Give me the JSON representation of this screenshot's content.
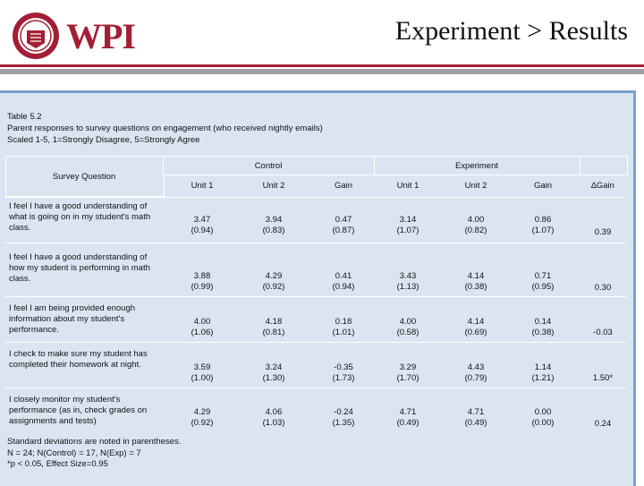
{
  "header": {
    "logo_text": "WPI",
    "title": "Experiment > Results"
  },
  "caption": {
    "line1": "Table 5.2",
    "line2": "Parent responses to survey questions on engagement (who received nightly emails)",
    "line3": "Scaled 1-5, 1=Strongly Disagree, 5=Strongly Agree"
  },
  "table": {
    "question_header": "Survey Question",
    "group_control": "Control",
    "group_experiment": "Experiment",
    "columns": [
      "Unit 1",
      "Unit 2",
      "Gain",
      "Unit 1",
      "Unit 2",
      "Gain",
      "∆Gain"
    ],
    "rows": [
      {
        "question": "I feel I have a good understanding of what is going on in my student's math class.",
        "values": [
          {
            "m": "3.47",
            "sd": "(0.94)"
          },
          {
            "m": "3.94",
            "sd": "(0.83)"
          },
          {
            "m": "0.47",
            "sd": "(0.87)"
          },
          {
            "m": "3.14",
            "sd": "(1.07)"
          },
          {
            "m": "4.00",
            "sd": "(0.82)"
          },
          {
            "m": "0.86",
            "sd": "(1.07)"
          }
        ],
        "delta": "0.39"
      },
      {
        "question": "I feel I have a good understanding of how my student is performing in math class.",
        "values": [
          {
            "m": "3.88",
            "sd": "(0.99)"
          },
          {
            "m": "4.29",
            "sd": "(0.92)"
          },
          {
            "m": "0.41",
            "sd": "(0.94)"
          },
          {
            "m": "3.43",
            "sd": "(1.13)"
          },
          {
            "m": "4.14",
            "sd": "(0.38)"
          },
          {
            "m": "0.71",
            "sd": "(0.95)"
          }
        ],
        "delta": "0.30"
      },
      {
        "question": "I feel I am being provided enough information about my student's performance.",
        "values": [
          {
            "m": "4.00",
            "sd": "(1.06)"
          },
          {
            "m": "4.18",
            "sd": "(0.81)"
          },
          {
            "m": "0.18",
            "sd": "(1.01)"
          },
          {
            "m": "4.00",
            "sd": "(0.58)"
          },
          {
            "m": "4.14",
            "sd": "(0.69)"
          },
          {
            "m": "0.14",
            "sd": "(0.38)"
          }
        ],
        "delta": "-0.03"
      },
      {
        "question": "I check to make sure my student has completed their homework at night.",
        "values": [
          {
            "m": "3.59",
            "sd": "(1.00)"
          },
          {
            "m": "3.24",
            "sd": "(1.30)"
          },
          {
            "m": "-0.35",
            "sd": "(1.73)"
          },
          {
            "m": "3.29",
            "sd": "(1.70)"
          },
          {
            "m": "4.43",
            "sd": "(0.79)"
          },
          {
            "m": "1.14",
            "sd": "(1.21)"
          }
        ],
        "delta": "1.50*"
      },
      {
        "question": "I closely monitor my student's performance (as in, check grades on assignments and tests)",
        "values": [
          {
            "m": "4.29",
            "sd": "(0.92)"
          },
          {
            "m": "4.06",
            "sd": "(1.03)"
          },
          {
            "m": "-0.24",
            "sd": "(1.35)"
          },
          {
            "m": "4.71",
            "sd": "(0.49)"
          },
          {
            "m": "4.71",
            "sd": "(0.49)"
          },
          {
            "m": "0.00",
            "sd": "(0.00)"
          }
        ],
        "delta": "0.24"
      }
    ]
  },
  "notes": {
    "line1": "Standard deviations are noted in parentheses.",
    "line2": "N = 24; N(Control) = 17, N(Exp) = 7",
    "line3": "*p < 0.05, Effect Size=0.95"
  },
  "colors": {
    "brand_red": "#a31f34",
    "panel_blue": "#dbe5f1",
    "panel_border": "#7aa1ce",
    "rule_gray": "#9ea1a4"
  }
}
